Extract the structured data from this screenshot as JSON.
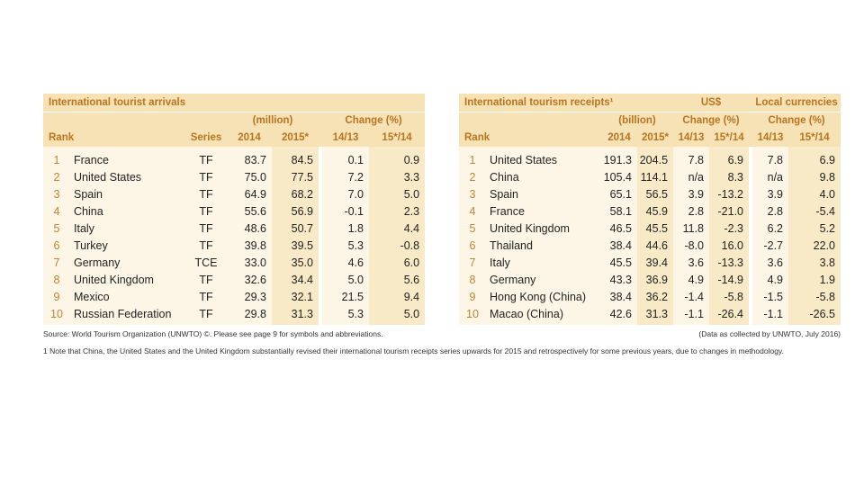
{
  "arrivals": {
    "title": "International tourist arrivals",
    "unit": "(million)",
    "change": "Change (%)",
    "col_rank": "Rank",
    "col_series": "Series",
    "col_2014": "2014",
    "col_2015": "2015*",
    "col_ch1": "14/13",
    "col_ch2": "15*/14",
    "rows": [
      {
        "rank": "1",
        "country": "France",
        "series": "TF",
        "v2014": "83.7",
        "v2015": "84.5",
        "c1": "0.1",
        "c2": "0.9"
      },
      {
        "rank": "2",
        "country": "United States",
        "series": "TF",
        "v2014": "75.0",
        "v2015": "77.5",
        "c1": "7.2",
        "c2": "3.3"
      },
      {
        "rank": "3",
        "country": "Spain",
        "series": "TF",
        "v2014": "64.9",
        "v2015": "68.2",
        "c1": "7.0",
        "c2": "5.0"
      },
      {
        "rank": "4",
        "country": "China",
        "series": "TF",
        "v2014": "55.6",
        "v2015": "56.9",
        "c1": "-0.1",
        "c2": "2.3"
      },
      {
        "rank": "5",
        "country": "Italy",
        "series": "TF",
        "v2014": "48.6",
        "v2015": "50.7",
        "c1": "1.8",
        "c2": "4.4"
      },
      {
        "rank": "6",
        "country": "Turkey",
        "series": "TF",
        "v2014": "39.8",
        "v2015": "39.5",
        "c1": "5.3",
        "c2": "-0.8"
      },
      {
        "rank": "7",
        "country": "Germany",
        "series": "TCE",
        "v2014": "33.0",
        "v2015": "35.0",
        "c1": "4.6",
        "c2": "6.0"
      },
      {
        "rank": "8",
        "country": "United Kingdom",
        "series": "TF",
        "v2014": "32.6",
        "v2015": "34.4",
        "c1": "5.0",
        "c2": "5.6"
      },
      {
        "rank": "9",
        "country": "Mexico",
        "series": "TF",
        "v2014": "29.3",
        "v2015": "32.1",
        "c1": "21.5",
        "c2": "9.4"
      },
      {
        "rank": "10",
        "country": "Russian Federation",
        "series": "TF",
        "v2014": "29.8",
        "v2015": "31.3",
        "c1": "5.3",
        "c2": "5.0"
      }
    ]
  },
  "receipts": {
    "title": "International tourism receipts¹",
    "usd": "US$",
    "local": "Local currencies",
    "unit": "(billion)",
    "change": "Change (%)",
    "change_local": "Change (%)",
    "col_rank": "Rank",
    "col_2014": "2014",
    "col_2015": "2015*",
    "col_ch1": "14/13",
    "col_ch2": "15*/14",
    "col_lc1": "14/13",
    "col_lc2": "15*/14",
    "rows": [
      {
        "rank": "1",
        "country": "United States",
        "v2014": "191.3",
        "v2015": "204.5",
        "c1": "7.8",
        "c2": "6.9",
        "l1": "7.8",
        "l2": "6.9"
      },
      {
        "rank": "2",
        "country": "China",
        "v2014": "105.4",
        "v2015": "114.1",
        "c1": "n/a",
        "c2": "8.3",
        "l1": "n/a",
        "l2": "9.8"
      },
      {
        "rank": "3",
        "country": "Spain",
        "v2014": "65.1",
        "v2015": "56.5",
        "c1": "3.9",
        "c2": "-13.2",
        "l1": "3.9",
        "l2": "4.0"
      },
      {
        "rank": "4",
        "country": "France",
        "v2014": "58.1",
        "v2015": "45.9",
        "c1": "2.8",
        "c2": "-21.0",
        "l1": "2.8",
        "l2": "-5.4"
      },
      {
        "rank": "5",
        "country": "United Kingdom",
        "v2014": "46.5",
        "v2015": "45.5",
        "c1": "11.8",
        "c2": "-2.3",
        "l1": "6.2",
        "l2": "5.2"
      },
      {
        "rank": "6",
        "country": "Thailand",
        "v2014": "38.4",
        "v2015": "44.6",
        "c1": "-8.0",
        "c2": "16.0",
        "l1": "-2.7",
        "l2": "22.0"
      },
      {
        "rank": "7",
        "country": "Italy",
        "v2014": "45.5",
        "v2015": "39.4",
        "c1": "3.6",
        "c2": "-13.3",
        "l1": "3.6",
        "l2": "3.8"
      },
      {
        "rank": "8",
        "country": "Germany",
        "v2014": "43.3",
        "v2015": "36.9",
        "c1": "4.9",
        "c2": "-14.9",
        "l1": "4.9",
        "l2": "1.9"
      },
      {
        "rank": "9",
        "country": "Hong Kong (China)",
        "v2014": "38.4",
        "v2015": "36.2",
        "c1": "-1.4",
        "c2": "-5.8",
        "l1": "-1.5",
        "l2": "-5.8"
      },
      {
        "rank": "10",
        "country": "Macao (China)",
        "v2014": "42.6",
        "v2015": "31.3",
        "c1": "-1.1",
        "c2": "-26.4",
        "l1": "-1.1",
        "l2": "-26.5"
      }
    ]
  },
  "footer": {
    "source": "Source:  World Tourism Organization (UNWTO) ©.    Please see page 9 for symbols and abbreviations.",
    "collected": "(Data as collected by UNWTO, July 2016)",
    "note": "1  Note that China, the United States and the United Kingdom substantially revised their international tourism receipts series upwards for 2015 and retrospectively for some previous years, due to changes in methodology."
  }
}
